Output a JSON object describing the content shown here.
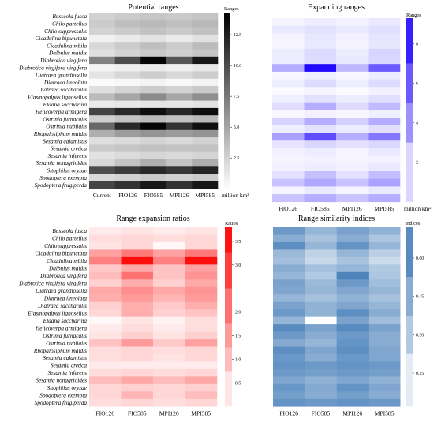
{
  "species": [
    "Busseola fusca",
    "Chilo partellus",
    "Chilo suppressalis",
    "Cicadulina bipunctata",
    "Cicadulina mbila",
    "Dalbulus maidis",
    "Diabrotica virgifera",
    "Diabrotica virgifera virgifera",
    "Diatraea grandiosella",
    "Diatraea lineolata",
    "Diatraea saccharalis",
    "Elasmopalpus lignosellus",
    "Eldana saccharina",
    "Helicoverpa armigera",
    "Ostrinia furnacalis",
    "Ostrinia nubilalis",
    "Rhopalosiphum maidis",
    "Sesamia calamistis",
    "Sesamia cretica",
    "Sesamia inferens",
    "Sesamia nonagrioides",
    "Sitophilus oryzae",
    "Spodoptera exempta",
    "Spodoptera frugiperda"
  ],
  "chart_data": [
    {
      "type": "heatmap",
      "title": "Potential ranges",
      "columns": [
        "Current",
        "FIO126",
        "FIO585",
        "MPI126",
        "MPI585"
      ],
      "colorbar": {
        "title": "Ranges",
        "unit": "million km²",
        "ticks": [
          "2.5",
          "5.0",
          "7.5",
          "10.0",
          "12.5"
        ],
        "tick_values": [
          2.5,
          5.0,
          7.5,
          10.0,
          12.5
        ],
        "range": [
          0,
          14.3
        ],
        "low_color": "#ffffff",
        "high_color": "#000000"
      },
      "values": [
        [
          2.5,
          2.9,
          3.2,
          3.0,
          3.3
        ],
        [
          2.9,
          3.6,
          3.9,
          3.6,
          4.0
        ],
        [
          2.5,
          2.9,
          3.4,
          3.0,
          3.5
        ],
        [
          0.8,
          1.2,
          1.6,
          1.2,
          1.7
        ],
        [
          2.2,
          2.9,
          3.6,
          2.9,
          3.8
        ],
        [
          1.7,
          2.4,
          3.0,
          2.6,
          3.2
        ],
        [
          7.0,
          10.0,
          14.0,
          9.5,
          13.0
        ],
        [
          0.6,
          0.9,
          1.2,
          0.9,
          1.3
        ],
        [
          1.5,
          2.2,
          2.8,
          2.2,
          2.8
        ],
        [
          0.3,
          0.4,
          0.6,
          0.4,
          0.7
        ],
        [
          1.8,
          2.4,
          2.9,
          2.5,
          3.0
        ],
        [
          3.8,
          5.0,
          6.5,
          5.0,
          6.3
        ],
        [
          1.1,
          1.3,
          1.5,
          1.4,
          1.6
        ],
        [
          10.5,
          12.0,
          13.5,
          12.2,
          13.5
        ],
        [
          2.7,
          3.3,
          3.8,
          3.4,
          3.9
        ],
        [
          8.5,
          12.0,
          14.0,
          11.5,
          13.5
        ],
        [
          4.5,
          5.5,
          6.0,
          5.6,
          6.0
        ],
        [
          1.8,
          2.0,
          2.4,
          2.1,
          2.5
        ],
        [
          3.0,
          3.2,
          3.4,
          3.3,
          3.4
        ],
        [
          1.6,
          2.0,
          2.3,
          2.1,
          2.4
        ],
        [
          2.2,
          3.3,
          4.5,
          3.3,
          4.6
        ],
        [
          10.0,
          11.0,
          12.0,
          11.2,
          12.3
        ],
        [
          2.2,
          2.6,
          3.0,
          2.6,
          3.0
        ],
        [
          10.5,
          11.5,
          13.0,
          11.5,
          13.0
        ]
      ]
    },
    {
      "type": "heatmap",
      "title": "Expanding ranges",
      "columns": [
        "FIO126",
        "FIO585",
        "MPI126",
        "MPI585"
      ],
      "colorbar": {
        "title": "Ranges",
        "unit": "million km²",
        "ticks": [
          "2",
          "4",
          "6",
          "8"
        ],
        "tick_values": [
          2,
          4,
          6,
          8
        ],
        "range": [
          0,
          9.3
        ],
        "low_color": "#ffffff",
        "high_color": "#1a00ff"
      },
      "values": [
        [
          0.4,
          0.7,
          0.5,
          0.8
        ],
        [
          0.8,
          1.1,
          0.8,
          1.2
        ],
        [
          0.4,
          0.9,
          0.5,
          1.0
        ],
        [
          0.4,
          0.8,
          0.4,
          0.9
        ],
        [
          0.7,
          1.4,
          0.7,
          1.6
        ],
        [
          0.7,
          1.3,
          0.9,
          1.5
        ],
        [
          3.0,
          9.0,
          2.6,
          6.0
        ],
        [
          0.3,
          0.6,
          0.3,
          0.7
        ],
        [
          0.7,
          1.3,
          0.7,
          1.3
        ],
        [
          0.2,
          0.4,
          0.2,
          0.5
        ],
        [
          0.6,
          1.1,
          0.7,
          1.2
        ],
        [
          1.2,
          3.0,
          1.3,
          2.5
        ],
        [
          0.3,
          0.5,
          0.3,
          0.6
        ],
        [
          1.6,
          3.0,
          1.7,
          3.0
        ],
        [
          0.6,
          1.1,
          0.7,
          1.2
        ],
        [
          3.5,
          6.5,
          3.0,
          5.0
        ],
        [
          1.0,
          1.5,
          1.1,
          1.5
        ],
        [
          0.5,
          0.7,
          0.4,
          0.8
        ],
        [
          0.4,
          0.5,
          0.4,
          0.5
        ],
        [
          0.5,
          0.7,
          0.5,
          0.8
        ],
        [
          1.1,
          2.3,
          1.1,
          2.4
        ],
        [
          2.2,
          3.2,
          2.2,
          3.4
        ],
        [
          0.4,
          0.8,
          0.4,
          0.8
        ],
        [
          2.2,
          3.0,
          2.2,
          3.0
        ]
      ]
    },
    {
      "type": "heatmap",
      "title": "Range expansion ratios",
      "columns": [
        "FIO126",
        "FIO585",
        "MPI126",
        "MPI585"
      ],
      "colorbar": {
        "title": "Ratios",
        "ticks": [
          "0.5",
          "1.0",
          "1.5",
          "2.0",
          "3.0",
          "3.5"
        ],
        "tick_values": [
          0.5,
          1.0,
          1.5,
          2.0,
          3.0,
          3.5
        ],
        "range": [
          0,
          3.8
        ],
        "low_color": "#ffffff",
        "high_color": "#ff0000"
      },
      "values": [
        [
          0.3,
          0.4,
          0.3,
          0.4
        ],
        [
          0.5,
          0.6,
          0.5,
          0.6
        ],
        [
          0.4,
          0.6,
          0.1,
          0.6
        ],
        [
          1.4,
          2.0,
          1.4,
          2.0
        ],
        [
          1.9,
          3.6,
          1.9,
          3.6
        ],
        [
          0.8,
          1.3,
          0.9,
          1.4
        ],
        [
          1.0,
          2.1,
          0.9,
          1.6
        ],
        [
          0.7,
          1.2,
          0.7,
          1.3
        ],
        [
          1.3,
          1.7,
          1.3,
          1.6
        ],
        [
          1.2,
          1.5,
          1.1,
          1.5
        ],
        [
          0.7,
          1.2,
          0.8,
          1.2
        ],
        [
          0.6,
          1.2,
          0.7,
          0.9
        ],
        [
          0.1,
          0.4,
          0.2,
          0.5
        ],
        [
          0.3,
          0.5,
          0.3,
          0.5
        ],
        [
          0.4,
          0.7,
          0.4,
          0.7
        ],
        [
          0.9,
          1.5,
          0.8,
          1.4
        ],
        [
          0.5,
          0.6,
          0.5,
          0.6
        ],
        [
          0.5,
          0.6,
          0.4,
          0.6
        ],
        [
          0.3,
          0.3,
          0.3,
          0.3
        ],
        [
          0.5,
          0.6,
          0.5,
          0.6
        ],
        [
          1.0,
          1.3,
          1.0,
          1.3
        ],
        [
          0.6,
          0.7,
          0.6,
          0.7
        ],
        [
          0.6,
          1.1,
          0.6,
          1.0
        ],
        [
          0.5,
          0.6,
          0.5,
          0.6
        ]
      ]
    },
    {
      "type": "heatmap",
      "title": "Range similarity indices",
      "columns": [
        "FIO126",
        "FIO585",
        "MPI126",
        "MPI585"
      ],
      "colorbar": {
        "title": "Indices",
        "ticks": [
          "0.15",
          "0.30",
          "0.45",
          "0.60"
        ],
        "tick_values": [
          0.15,
          0.3,
          0.45,
          0.6
        ],
        "range": [
          0.02,
          0.72
        ],
        "low_color": "#ffffff",
        "high_color": "#3d78b6"
      },
      "values": [
        [
          0.55,
          0.4,
          0.5,
          0.42
        ],
        [
          0.45,
          0.33,
          0.45,
          0.32
        ],
        [
          0.6,
          0.4,
          0.58,
          0.4
        ],
        [
          0.38,
          0.25,
          0.4,
          0.27
        ],
        [
          0.35,
          0.22,
          0.33,
          0.2
        ],
        [
          0.45,
          0.35,
          0.4,
          0.3
        ],
        [
          0.4,
          0.3,
          0.66,
          0.32
        ],
        [
          0.5,
          0.38,
          0.55,
          0.36
        ],
        [
          0.48,
          0.4,
          0.48,
          0.4
        ],
        [
          0.4,
          0.34,
          0.42,
          0.34
        ],
        [
          0.5,
          0.42,
          0.48,
          0.4
        ],
        [
          0.55,
          0.42,
          0.6,
          0.45
        ],
        [
          0.4,
          0.03,
          0.5,
          0.36
        ],
        [
          0.62,
          0.5,
          0.62,
          0.5
        ],
        [
          0.55,
          0.45,
          0.55,
          0.45
        ],
        [
          0.46,
          0.4,
          0.58,
          0.45
        ],
        [
          0.6,
          0.48,
          0.6,
          0.48
        ],
        [
          0.56,
          0.45,
          0.56,
          0.48
        ],
        [
          0.58,
          0.55,
          0.58,
          0.55
        ],
        [
          0.55,
          0.52,
          0.55,
          0.52
        ],
        [
          0.48,
          0.42,
          0.48,
          0.42
        ],
        [
          0.56,
          0.46,
          0.58,
          0.48
        ],
        [
          0.52,
          0.45,
          0.52,
          0.45
        ],
        [
          0.58,
          0.55,
          0.58,
          0.55
        ]
      ]
    }
  ]
}
